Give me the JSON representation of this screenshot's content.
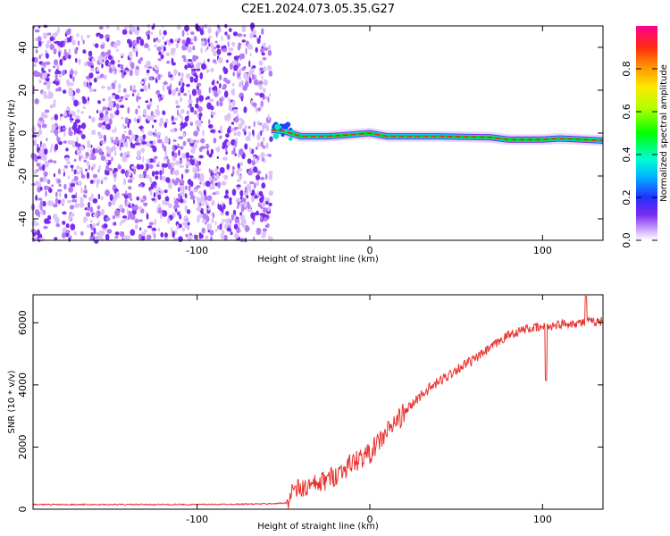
{
  "title": "C2E1.2024.073.05.35.G27",
  "colors": {
    "snr_line": "#e8312d",
    "noise_dot": "#7a2bf0",
    "spectrum_core": "#e8282d"
  },
  "chart_data": [
    {
      "type": "heatmap",
      "xlabel": "Height of straight line (km)",
      "ylabel": "Frequency (Hz)",
      "xlim": [
        -195,
        135
      ],
      "ylim": [
        -50,
        50
      ],
      "xticks": [
        -100,
        0,
        100
      ],
      "yticks": [
        -40,
        -20,
        0,
        20,
        40
      ],
      "noise_region_x": [
        -195,
        -57
      ],
      "signal_track": [
        {
          "x": -57,
          "f": 1.5
        },
        {
          "x": -50,
          "f": 1.0
        },
        {
          "x": -40,
          "f": -1.5
        },
        {
          "x": -25,
          "f": -1.5
        },
        {
          "x": -15,
          "f": -1.0
        },
        {
          "x": 0,
          "f": 0.0
        },
        {
          "x": 10,
          "f": -1.5
        },
        {
          "x": 40,
          "f": -1.5
        },
        {
          "x": 70,
          "f": -2.0
        },
        {
          "x": 80,
          "f": -3.0
        },
        {
          "x": 100,
          "f": -3.0
        },
        {
          "x": 110,
          "f": -2.5
        },
        {
          "x": 135,
          "f": -3.5
        }
      ],
      "colorbar": {
        "label": "Normalized spectral amplitude",
        "ticks": [
          0.0,
          0.2,
          0.4,
          0.6,
          0.8
        ],
        "range": [
          0,
          1
        ]
      }
    },
    {
      "type": "line",
      "xlabel": "Height of straight line (km)",
      "ylabel": "SNR (10 * v/v)",
      "xlim": [
        -195,
        135
      ],
      "ylim": [
        0,
        6900
      ],
      "xticks": [
        -100,
        0,
        100
      ],
      "yticks": [
        0,
        2000,
        4000,
        6000
      ],
      "series": [
        {
          "x": [
            -195,
            -150,
            -100,
            -60,
            -48,
            -45,
            -40,
            -30,
            -20,
            -10,
            0,
            10,
            20,
            30,
            40,
            50,
            60,
            70,
            80,
            90,
            100,
            110,
            120,
            135
          ],
          "y": [
            150,
            150,
            150,
            170,
            200,
            600,
            650,
            800,
            1100,
            1500,
            1800,
            2500,
            3100,
            3700,
            4100,
            4500,
            4800,
            5200,
            5600,
            5800,
            5850,
            5950,
            6000,
            6050
          ]
        }
      ]
    }
  ]
}
